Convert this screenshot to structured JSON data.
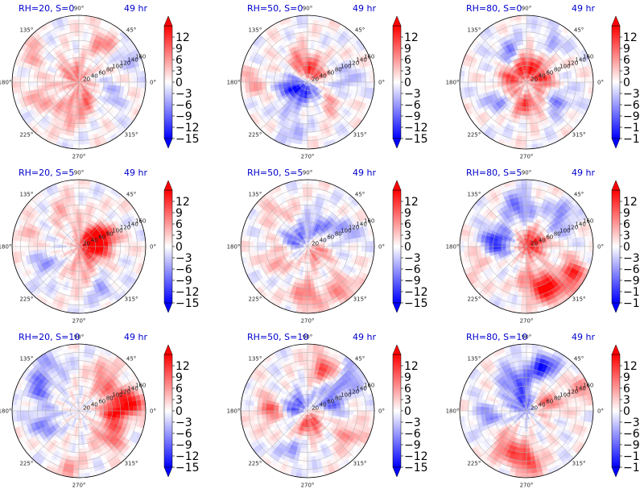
{
  "colors": {
    "positive": "#ff0000",
    "negative": "#0000ff",
    "title": "#0000cc",
    "grid": "#b0b0b0"
  },
  "chart_data": {
    "type": "heatmap",
    "projection": "polar",
    "colormap": "bwr",
    "color_range": [
      -15,
      15
    ],
    "colorbar_ticks": [
      "12",
      "9",
      "6",
      "3",
      "0",
      "−3",
      "−6",
      "−9",
      "−12",
      "−15"
    ],
    "angle_labels": [
      "0°",
      "45°",
      "90°",
      "135°",
      "180°",
      "225°",
      "270°",
      "315°"
    ],
    "radial_labels": [
      "20",
      "40",
      "60",
      "80",
      "100",
      "120",
      "140",
      "160"
    ],
    "grid": true,
    "panels": [
      {
        "title_left": "RH=20, S=0",
        "title_right": "49 hr",
        "blobs": [
          [
            0.15,
            120,
            0.5
          ],
          [
            0.3,
            -60,
            0.6
          ],
          [
            0.7,
            60,
            0.45
          ],
          [
            0.85,
            150,
            0.3
          ],
          [
            0.6,
            200,
            0.35
          ],
          [
            0.45,
            -30,
            -0.4
          ],
          [
            0.9,
            30,
            -0.3
          ],
          [
            0.5,
            250,
            0.4
          ]
        ]
      },
      {
        "title_left": "RH=50, S=0",
        "title_right": "49 hr",
        "blobs": [
          [
            0.12,
            60,
            1.0
          ],
          [
            0.08,
            -80,
            -0.9
          ],
          [
            0.25,
            200,
            -0.7
          ],
          [
            0.35,
            110,
            0.4
          ],
          [
            0.55,
            0,
            -0.35
          ],
          [
            0.8,
            180,
            0.3
          ],
          [
            0.45,
            -40,
            0.35
          ],
          [
            0.7,
            250,
            -0.3
          ]
        ]
      },
      {
        "title_left": "RH=80, S=0",
        "title_right": "49 hr",
        "blobs": [
          [
            0.2,
            0,
            0.95
          ],
          [
            0.25,
            90,
            0.85
          ],
          [
            0.25,
            180,
            0.8
          ],
          [
            0.3,
            270,
            0.9
          ],
          [
            0.1,
            -60,
            -0.8
          ],
          [
            0.5,
            120,
            -0.5
          ],
          [
            0.55,
            -30,
            -0.45
          ],
          [
            0.45,
            210,
            -0.5
          ],
          [
            0.8,
            60,
            -0.3
          ]
        ]
      },
      {
        "title_left": "RH=20, S=5",
        "title_right": "49 hr",
        "blobs": [
          [
            0.25,
            30,
            0.75
          ],
          [
            0.4,
            15,
            0.6
          ],
          [
            0.2,
            -20,
            0.55
          ],
          [
            0.55,
            110,
            0.3
          ],
          [
            0.6,
            210,
            -0.35
          ],
          [
            0.75,
            -60,
            -0.3
          ],
          [
            0.85,
            170,
            0.25
          ],
          [
            0.4,
            -90,
            0.3
          ]
        ]
      },
      {
        "title_left": "RH=50, S=5",
        "title_right": "49 hr",
        "blobs": [
          [
            0.75,
            -90,
            0.6
          ],
          [
            0.85,
            -50,
            0.5
          ],
          [
            0.2,
            150,
            -0.6
          ],
          [
            0.35,
            60,
            -0.45
          ],
          [
            0.45,
            200,
            0.4
          ],
          [
            0.65,
            130,
            0.3
          ],
          [
            0.15,
            -30,
            0.5
          ],
          [
            0.6,
            20,
            -0.3
          ]
        ]
      },
      {
        "title_left": "RH=80, S=5",
        "title_right": "49 hr",
        "blobs": [
          [
            0.75,
            -60,
            0.9
          ],
          [
            0.55,
            -80,
            0.6
          ],
          [
            0.8,
            -30,
            0.75
          ],
          [
            0.45,
            170,
            -0.85
          ],
          [
            0.6,
            100,
            -0.6
          ],
          [
            0.65,
            40,
            -0.5
          ],
          [
            0.1,
            30,
            0.9
          ],
          [
            0.8,
            200,
            0.3
          ]
        ]
      },
      {
        "title_left": "RH=20, S=10",
        "title_right": "49 hr",
        "blobs": [
          [
            0.55,
            0,
            0.85
          ],
          [
            0.8,
            10,
            0.75
          ],
          [
            0.6,
            50,
            0.6
          ],
          [
            0.6,
            -40,
            0.6
          ],
          [
            0.7,
            150,
            -0.55
          ],
          [
            0.55,
            200,
            -0.45
          ],
          [
            0.8,
            120,
            -0.35
          ],
          [
            0.85,
            -100,
            0.3
          ]
        ]
      },
      {
        "title_left": "RH=50, S=10",
        "title_right": "49 hr",
        "blobs": [
          [
            0.15,
            -90,
            0.95
          ],
          [
            0.15,
            170,
            -0.9
          ],
          [
            0.7,
            70,
            0.7
          ],
          [
            0.55,
            180,
            0.6
          ],
          [
            0.75,
            -30,
            0.45
          ],
          [
            0.4,
            25,
            -0.6
          ],
          [
            0.85,
            40,
            -0.5
          ],
          [
            0.65,
            250,
            -0.3
          ]
        ]
      },
      {
        "title_left": "RH=80, S=10",
        "title_right": "49 hr",
        "blobs": [
          [
            0.75,
            -90,
            0.85
          ],
          [
            0.6,
            -120,
            0.6
          ],
          [
            0.7,
            70,
            -0.85
          ],
          [
            0.5,
            110,
            -0.6
          ],
          [
            0.3,
            30,
            0.6
          ],
          [
            0.85,
            20,
            0.4
          ],
          [
            0.15,
            100,
            -0.7
          ],
          [
            0.6,
            190,
            -0.4
          ]
        ]
      }
    ]
  }
}
